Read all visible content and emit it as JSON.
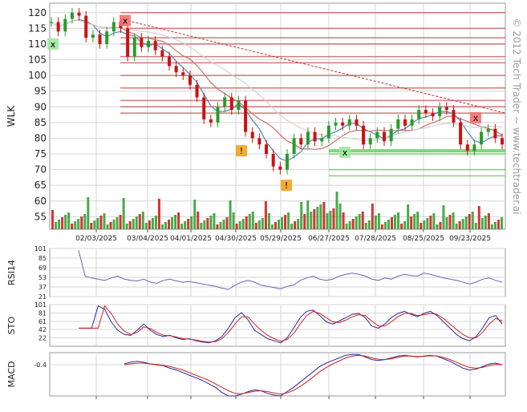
{
  "chart_data": {
    "type": "candlestick",
    "ticker_label": "WLK",
    "watermark": "© 2012 Tech Trader ~ www.techtrader.ai",
    "x_tick_labels": [
      "02/03/2025",
      "03/04/2025",
      "04/01/2025",
      "04/30/2025",
      "05/29/2025",
      "06/27/2025",
      "07/28/2025",
      "08/25/2025",
      "09/23/2025"
    ],
    "price_axis": {
      "ticks": [
        55,
        60,
        65,
        70,
        75,
        80,
        85,
        90,
        95,
        100,
        105,
        110,
        115,
        120
      ],
      "range": [
        51,
        123
      ]
    },
    "colors": {
      "up": "#2a9a2a",
      "down": "#cc1111",
      "ma_fast": "#4a8ab8",
      "ma_mid": "#c86e6e",
      "ma_slow": "#d8d0d0",
      "trend": "#dd2222",
      "resistance": "#c85a5a",
      "support": "#5ccc5c",
      "rsi": "#6666bb",
      "sto_k": "#2a2a99",
      "sto_d": "#cc2222",
      "grid": "#d6d6d6"
    },
    "price_series": [
      117,
      114,
      118,
      120,
      119,
      112,
      113,
      110,
      114,
      117,
      115,
      106,
      112,
      109,
      111,
      108,
      106,
      103,
      101,
      100,
      97,
      93,
      86,
      85,
      90,
      93,
      89,
      92,
      82,
      80,
      78,
      75,
      71,
      70,
      75,
      80,
      78,
      82,
      79,
      80,
      84,
      85,
      84,
      86,
      84,
      78,
      80,
      82,
      79,
      83,
      86,
      84,
      86,
      89,
      88,
      87,
      90,
      89,
      85,
      78,
      76,
      78,
      82,
      83,
      80,
      78
    ],
    "price_range_x": [
      64,
      626
    ],
    "resistance_levels": [
      120,
      115,
      112,
      110,
      106,
      104,
      100,
      96,
      92,
      90,
      88
    ],
    "support_levels": [
      76,
      75,
      70,
      68
    ],
    "trendline": {
      "from": [
        118
      ],
      "to": [
        88
      ]
    },
    "markers": [
      {
        "label": "x",
        "type": "sell",
        "price": 117.5
      },
      {
        "label": "x",
        "type": "buy",
        "price": 110
      },
      {
        "label": "!",
        "type": "warn",
        "price": 76
      },
      {
        "label": "!",
        "type": "warn",
        "price": 65
      },
      {
        "label": "x",
        "type": "buy",
        "price": 75.5
      },
      {
        "label": "x",
        "type": "sell",
        "price": 86.5
      }
    ],
    "panels": [
      {
        "name": "RSI14",
        "ticks": [
          101,
          85,
          69,
          53,
          37,
          21
        ],
        "range": [
          21,
          101
        ]
      },
      {
        "name": "STO",
        "ticks": [
          101,
          81,
          61,
          42,
          22
        ],
        "range": [
          2,
          101
        ]
      },
      {
        "name": "MACD",
        "ticks": [
          -0.4
        ],
        "range": [
          -4,
          1
        ]
      }
    ],
    "rsi_series": [
      98,
      55,
      52,
      50,
      48,
      52,
      55,
      50,
      48,
      47,
      50,
      45,
      43,
      48,
      50,
      47,
      45,
      46,
      44,
      42,
      40,
      38,
      35,
      33,
      40,
      45,
      48,
      45,
      40,
      38,
      36,
      34,
      38,
      40,
      48,
      52,
      55,
      50,
      48,
      50,
      55,
      58,
      60,
      58,
      55,
      50,
      48,
      52,
      50,
      55,
      58,
      56,
      55,
      60,
      58,
      55,
      52,
      50,
      48,
      45,
      42,
      45,
      50,
      52,
      48,
      45
    ],
    "sto_k": [
      45,
      45,
      45,
      98,
      90,
      60,
      40,
      30,
      28,
      40,
      55,
      40,
      30,
      25,
      28,
      22,
      18,
      20,
      15,
      12,
      10,
      15,
      25,
      45,
      70,
      82,
      65,
      40,
      30,
      20,
      15,
      10,
      22,
      45,
      70,
      85,
      88,
      75,
      60,
      55,
      62,
      70,
      78,
      80,
      70,
      50,
      45,
      55,
      70,
      80,
      85,
      78,
      72,
      80,
      85,
      75,
      60,
      45,
      30,
      20,
      15,
      25,
      45,
      70,
      75,
      55
    ],
    "sto_d": [
      45,
      45,
      45,
      45,
      98,
      80,
      55,
      38,
      30,
      35,
      48,
      44,
      35,
      28,
      27,
      24,
      20,
      19,
      17,
      14,
      12,
      13,
      20,
      35,
      55,
      72,
      72,
      55,
      40,
      28,
      20,
      14,
      18,
      32,
      55,
      75,
      85,
      80,
      70,
      60,
      58,
      64,
      72,
      77,
      75,
      62,
      50,
      50,
      60,
      72,
      80,
      80,
      75,
      77,
      80,
      78,
      68,
      55,
      42,
      30,
      22,
      22,
      35,
      55,
      68,
      62
    ],
    "macd_line": [
      null,
      null,
      null,
      null,
      null,
      null,
      null,
      -0.3,
      -0.1,
      0.0,
      -0.1,
      -0.3,
      -0.4,
      -0.5,
      -0.8,
      -1.0,
      -1.3,
      -1.6,
      -1.9,
      -2.2,
      -2.6,
      -3.0,
      -3.6,
      -4.0,
      -4.2,
      -3.8,
      -3.5,
      -3.3,
      -3.4,
      -3.7,
      -3.9,
      -4.0,
      -3.5,
      -3.0,
      -2.4,
      -1.8,
      -1.2,
      -0.6,
      -0.2,
      0.1,
      0.4,
      0.7,
      0.8,
      0.8,
      0.5,
      0.2,
      0.1,
      0.2,
      0.4,
      0.6,
      0.7,
      0.6,
      0.5,
      0.6,
      0.7,
      0.6,
      0.3,
      0.0,
      -0.4,
      -0.8,
      -1.0,
      -0.9,
      -0.6,
      -0.3,
      -0.2,
      -0.4
    ],
    "macd_signal": [
      null,
      null,
      null,
      null,
      null,
      null,
      null,
      -0.4,
      -0.3,
      -0.2,
      -0.2,
      -0.3,
      -0.35,
      -0.45,
      -0.6,
      -0.8,
      -1.0,
      -1.3,
      -1.6,
      -1.9,
      -2.2,
      -2.6,
      -3.0,
      -3.4,
      -3.7,
      -3.75,
      -3.6,
      -3.45,
      -3.4,
      -3.5,
      -3.65,
      -3.8,
      -3.65,
      -3.35,
      -2.9,
      -2.4,
      -1.8,
      -1.2,
      -0.7,
      -0.3,
      0.05,
      0.4,
      0.6,
      0.7,
      0.6,
      0.4,
      0.25,
      0.2,
      0.3,
      0.45,
      0.6,
      0.6,
      0.55,
      0.58,
      0.64,
      0.62,
      0.45,
      0.2,
      -0.1,
      -0.45,
      -0.7,
      -0.8,
      -0.7,
      -0.5,
      -0.35,
      -0.38
    ]
  }
}
